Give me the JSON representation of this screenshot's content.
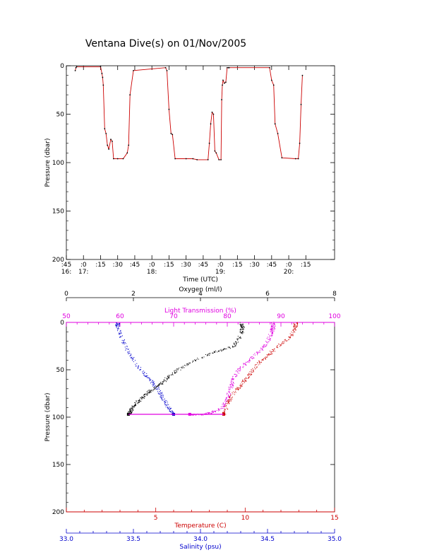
{
  "title": "Ventana Dive(s) on 01/Nov/2005",
  "colors": {
    "black": "#000000",
    "red": "#cc0000",
    "magenta": "#e000e0",
    "blue": "#0000cc"
  },
  "chart_data": [
    {
      "type": "line",
      "ylabel": "Pressure (dbar)",
      "xlabel": "Time (UTC)",
      "ylim": [
        200,
        0
      ],
      "yticks": [
        "0",
        "50",
        "100",
        "150",
        "200"
      ],
      "xlim": [
        16.75,
        20.67
      ],
      "xticks": [
        {
          "t": 16.75,
          "top": ":45",
          "bottom": "16:"
        },
        {
          "t": 17.0,
          "top": ":0",
          "bottom": "17:"
        },
        {
          "t": 17.25,
          "top": ":15",
          "bottom": ""
        },
        {
          "t": 17.5,
          "top": ":30",
          "bottom": ""
        },
        {
          "t": 17.75,
          "top": ":45",
          "bottom": ""
        },
        {
          "t": 18.0,
          "top": ":0",
          "bottom": "18:"
        },
        {
          "t": 18.25,
          "top": ":15",
          "bottom": ""
        },
        {
          "t": 18.5,
          "top": ":30",
          "bottom": ""
        },
        {
          "t": 18.75,
          "top": ":45",
          "bottom": ""
        },
        {
          "t": 19.0,
          "top": ":0",
          "bottom": "19:"
        },
        {
          "t": 19.25,
          "top": ":15",
          "bottom": ""
        },
        {
          "t": 19.5,
          "top": ":30",
          "bottom": ""
        },
        {
          "t": 19.75,
          "top": ":45",
          "bottom": ""
        },
        {
          "t": 20.0,
          "top": ":0",
          "bottom": "20:"
        },
        {
          "t": 20.25,
          "top": ":15",
          "bottom": ""
        }
      ],
      "series": [
        {
          "color": "#cc0000",
          "x": [
            16.88,
            16.89,
            16.9,
            17.25,
            17.27,
            17.28,
            17.29,
            17.31,
            17.33,
            17.35,
            17.37,
            17.4,
            17.42,
            17.44,
            17.5,
            17.58,
            17.64,
            17.66,
            17.68,
            17.73,
            18.2,
            18.22,
            18.25,
            18.28,
            18.3,
            18.34,
            18.5,
            18.6,
            18.66,
            18.82,
            18.84,
            18.86,
            18.88,
            18.9,
            18.92,
            18.94,
            18.98,
            19.01,
            19.02,
            19.03,
            19.04,
            19.06,
            19.08,
            19.1,
            19.12,
            19.13,
            19.72,
            19.75,
            19.78,
            19.8,
            19.84,
            19.9,
            20.1,
            20.14,
            20.16,
            20.18,
            20.2
          ],
          "y": [
            5,
            2,
            1,
            1,
            8,
            12,
            20,
            65,
            70,
            82,
            86,
            76,
            78,
            96,
            96,
            96,
            90,
            82,
            30,
            5,
            2,
            5,
            45,
            70,
            71,
            96,
            96,
            96,
            97,
            97,
            80,
            60,
            48,
            50,
            88,
            90,
            97,
            97,
            35,
            20,
            15,
            18,
            17,
            2,
            2,
            2,
            2,
            15,
            20,
            60,
            70,
            95,
            96,
            96,
            80,
            40,
            10
          ]
        }
      ]
    },
    {
      "type": "scatter",
      "ylabel": "Pressure (dbar)",
      "ylim": [
        200,
        0
      ],
      "yticks": [
        "0",
        "50",
        "100",
        "150",
        "200"
      ],
      "axes": {
        "oxygen": {
          "label": "Oxygen (ml/l)",
          "range": [
            0,
            8
          ],
          "ticks": [
            "0",
            "2",
            "4",
            "6",
            "8"
          ],
          "color": "#000000"
        },
        "light_transmission": {
          "label": "Light Transmission (%)",
          "range": [
            50,
            100
          ],
          "ticks": [
            "50",
            "60",
            "70",
            "80",
            "90",
            "100"
          ],
          "color": "#e000e0"
        },
        "temperature": {
          "label": "Temperature (C)",
          "range": [
            0,
            15
          ],
          "ticks": [
            "5",
            "10",
            "15"
          ],
          "color": "#cc0000"
        },
        "salinity": {
          "label": "Salinity (psu)",
          "range": [
            33.0,
            35.0
          ],
          "ticks": [
            "33.0",
            "33.5",
            "34.0",
            "34.5",
            "35.0"
          ],
          "color": "#0000cc"
        }
      },
      "series": [
        {
          "variable": "oxygen",
          "color": "#000000",
          "values": [
            5.2,
            5.25,
            5.2,
            5.0,
            4.5,
            3.8,
            3.3,
            3.0,
            2.8,
            2.5,
            2.3,
            2.1,
            1.95,
            1.9,
            1.85
          ],
          "pressure": [
            0,
            5,
            12,
            25,
            30,
            40,
            50,
            58,
            65,
            72,
            78,
            84,
            90,
            94,
            97
          ]
        },
        {
          "variable": "light_transmission",
          "color": "#e000e0",
          "values": [
            88.5,
            88.5,
            88.2,
            87.5,
            86.0,
            84.0,
            82.0,
            81.0,
            80.5,
            80.0,
            79.0,
            77.0,
            75.0,
            73.0
          ],
          "pressure": [
            0,
            5,
            10,
            20,
            30,
            40,
            50,
            60,
            70,
            80,
            90,
            95,
            97,
            97
          ]
        },
        {
          "variable": "temperature",
          "color": "#cc0000",
          "values": [
            12.8,
            12.8,
            12.5,
            11.8,
            11.2,
            10.6,
            10.2,
            9.8,
            9.3,
            9.0,
            8.8
          ],
          "pressure": [
            0,
            5,
            15,
            25,
            35,
            45,
            55,
            65,
            75,
            85,
            97
          ]
        },
        {
          "variable": "salinity",
          "color": "#0000cc",
          "values": [
            33.38,
            33.38,
            33.42,
            33.48,
            33.55,
            33.62,
            33.68,
            33.72,
            33.76,
            33.8
          ],
          "pressure": [
            0,
            5,
            20,
            35,
            50,
            60,
            70,
            80,
            90,
            97
          ]
        }
      ]
    }
  ]
}
